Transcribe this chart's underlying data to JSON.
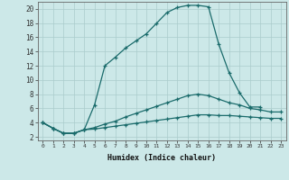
{
  "xlabel": "Humidex (Indice chaleur)",
  "bg_color": "#cce8e8",
  "grid_color": "#aacccc",
  "line_color": "#1a6b6b",
  "xlim": [
    -0.5,
    23.5
  ],
  "ylim": [
    1.5,
    21.0
  ],
  "xticks": [
    0,
    1,
    2,
    3,
    4,
    5,
    6,
    7,
    8,
    9,
    10,
    11,
    12,
    13,
    14,
    15,
    16,
    17,
    18,
    19,
    20,
    21,
    22,
    23
  ],
  "yticks": [
    2,
    4,
    6,
    8,
    10,
    12,
    14,
    16,
    18,
    20
  ],
  "curve1_x": [
    0,
    1,
    2,
    3,
    4,
    5,
    6,
    7,
    8,
    9,
    10,
    11,
    12,
    13,
    14,
    15,
    16,
    17,
    18,
    19,
    20,
    21
  ],
  "curve1_y": [
    4.0,
    3.2,
    2.5,
    2.5,
    3.0,
    6.5,
    12.0,
    13.2,
    14.5,
    15.5,
    16.5,
    18.0,
    19.5,
    20.2,
    20.5,
    20.5,
    20.3,
    15.0,
    11.0,
    8.2,
    6.2,
    6.2
  ],
  "curve2_x": [
    0,
    1,
    2,
    3,
    4,
    5,
    6,
    7,
    8,
    9,
    10,
    11,
    12,
    13,
    14,
    15,
    16,
    17,
    18,
    19,
    20,
    21,
    22,
    23
  ],
  "curve2_y": [
    4.0,
    3.2,
    2.5,
    2.5,
    3.0,
    3.3,
    3.8,
    4.2,
    4.8,
    5.3,
    5.8,
    6.3,
    6.8,
    7.3,
    7.8,
    8.0,
    7.8,
    7.3,
    6.8,
    6.5,
    6.0,
    5.8,
    5.5,
    5.5
  ],
  "curve3_x": [
    0,
    1,
    2,
    3,
    4,
    5,
    6,
    7,
    8,
    9,
    10,
    11,
    12,
    13,
    14,
    15,
    16,
    17,
    18,
    19,
    20,
    21,
    22,
    23
  ],
  "curve3_y": [
    4.0,
    3.2,
    2.5,
    2.5,
    3.0,
    3.1,
    3.3,
    3.5,
    3.7,
    3.9,
    4.1,
    4.3,
    4.5,
    4.7,
    4.9,
    5.1,
    5.1,
    5.0,
    5.0,
    4.9,
    4.8,
    4.7,
    4.6,
    4.6
  ]
}
